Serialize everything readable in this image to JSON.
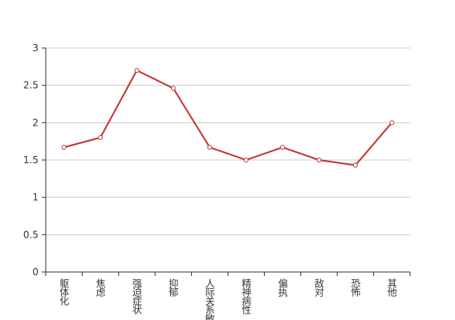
{
  "chart_data": {
    "type": "line",
    "categories": [
      "躯体化",
      "焦虑",
      "强迫症状",
      "抑郁",
      "人际关系敏感",
      "精神病性",
      "偏执",
      "敌对",
      "恐怖",
      "其他"
    ],
    "values": [
      1.67,
      1.8,
      2.7,
      2.46,
      1.67,
      1.5,
      1.67,
      1.5,
      1.43,
      2.0
    ],
    "color": "#c23531",
    "ylim": [
      0,
      3
    ],
    "yticks": [
      0,
      0.5,
      1,
      1.5,
      2,
      2.5,
      3
    ],
    "grid": true
  }
}
